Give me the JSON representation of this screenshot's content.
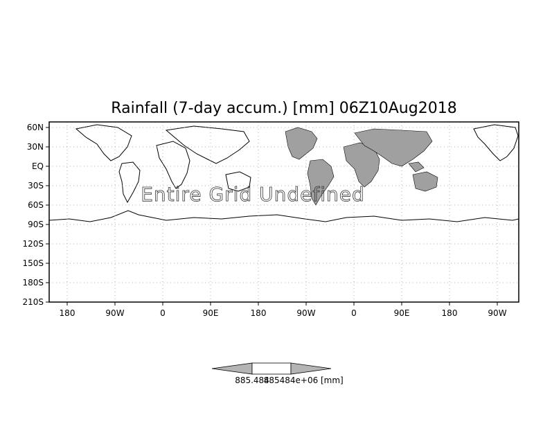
{
  "title": "Rainfall (7-day accum.) [mm] 06Z10Aug2018",
  "overlay_message": "Entire Grid Undefined",
  "y_axis": {
    "labels": [
      "60N",
      "30N",
      "EQ",
      "30S",
      "60S",
      "90S",
      "120S",
      "150S",
      "180S",
      "210S"
    ]
  },
  "x_axis": {
    "labels": [
      "180",
      "90W",
      "0",
      "90E",
      "180",
      "90W",
      "0",
      "90E",
      "180",
      "90W"
    ]
  },
  "colorbar": {
    "left_value": "885.484",
    "right_value": "885484e+06",
    "unit": "[mm]",
    "arrow_color": "#b4b4b4",
    "center_color": "#ffffff"
  },
  "colors": {
    "land_shaded": "#a0a0a0",
    "outline": "#000000",
    "grid": "#9a9a9a"
  }
}
